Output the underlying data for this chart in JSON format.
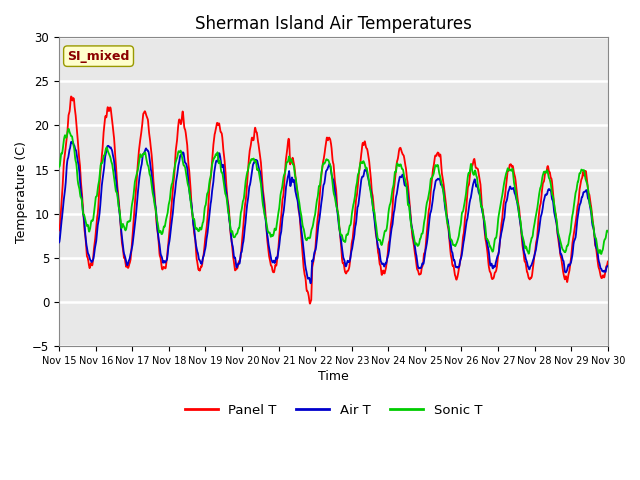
{
  "title": "Sherman Island Air Temperatures",
  "xlabel": "Time",
  "ylabel": "Temperature (C)",
  "ylim": [
    -5,
    30
  ],
  "xlim_days": [
    15,
    30
  ],
  "annotation_text": "SI_mixed",
  "annotation_color": "#8B0000",
  "annotation_bg": "#FFFFCC",
  "plot_bg": "#E8E8E8",
  "grid_color": "#FFFFFF",
  "line_colors": {
    "panel": "#FF0000",
    "air": "#0000CC",
    "sonic": "#00CC00"
  },
  "line_width": 1.3,
  "tick_labels": [
    "Nov 15",
    "Nov 16",
    "Nov 17",
    "Nov 18",
    "Nov 19",
    "Nov 20",
    "Nov 21",
    "Nov 22",
    "Nov 23",
    "Nov 24",
    "Nov 25",
    "Nov 26",
    "Nov 27",
    "Nov 28",
    "Nov 29",
    "Nov 30"
  ],
  "legend_labels": [
    "Panel T",
    "Air T",
    "Sonic T"
  ]
}
